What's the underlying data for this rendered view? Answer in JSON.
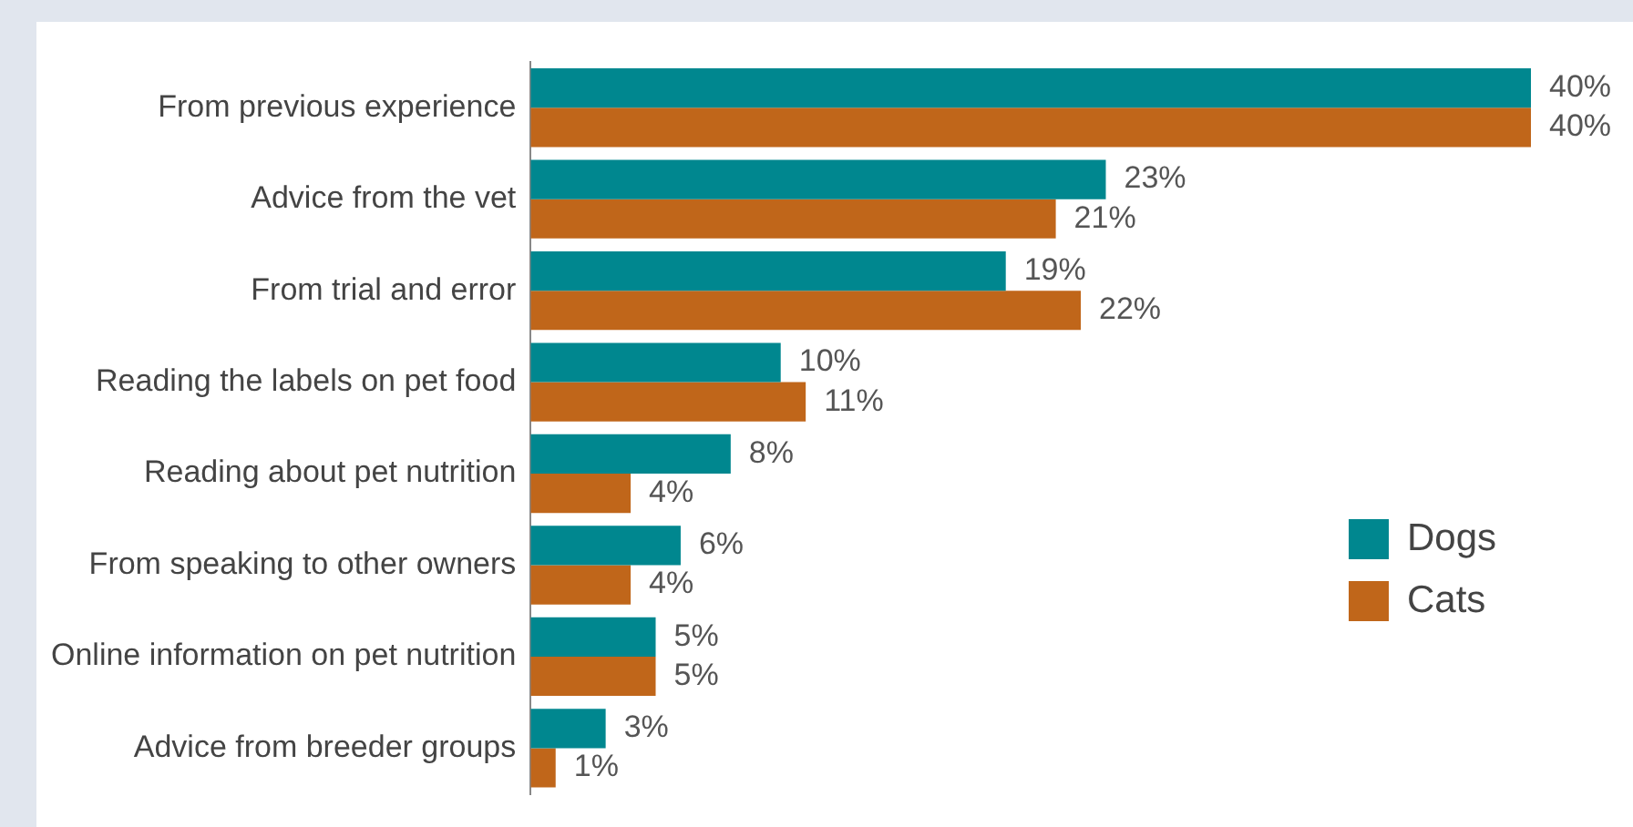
{
  "chart_data": {
    "type": "bar",
    "orientation": "horizontal",
    "categories": [
      "From previous experience",
      "Advice from the vet",
      "From trial and error",
      "Reading the labels on pet food",
      "Reading about pet nutrition",
      "From speaking to other owners",
      "Online information on pet nutrition",
      "Advice from breeder groups"
    ],
    "series": [
      {
        "name": "Dogs",
        "color": "#00878f",
        "values": [
          40,
          23,
          19,
          10,
          8,
          6,
          5,
          3
        ],
        "value_labels": [
          "40%",
          "23%",
          "19%",
          "10%",
          "8%",
          "6%",
          "5%",
          "3%"
        ]
      },
      {
        "name": "Cats",
        "color": "#c0661a",
        "values": [
          40,
          21,
          22,
          11,
          4,
          4,
          5,
          1
        ],
        "value_labels": [
          "40%",
          "21%",
          "22%",
          "11%",
          "4%",
          "4%",
          "5%",
          "1%"
        ]
      }
    ],
    "tick_labels": "y",
    "grid": false,
    "legend": "right"
  }
}
